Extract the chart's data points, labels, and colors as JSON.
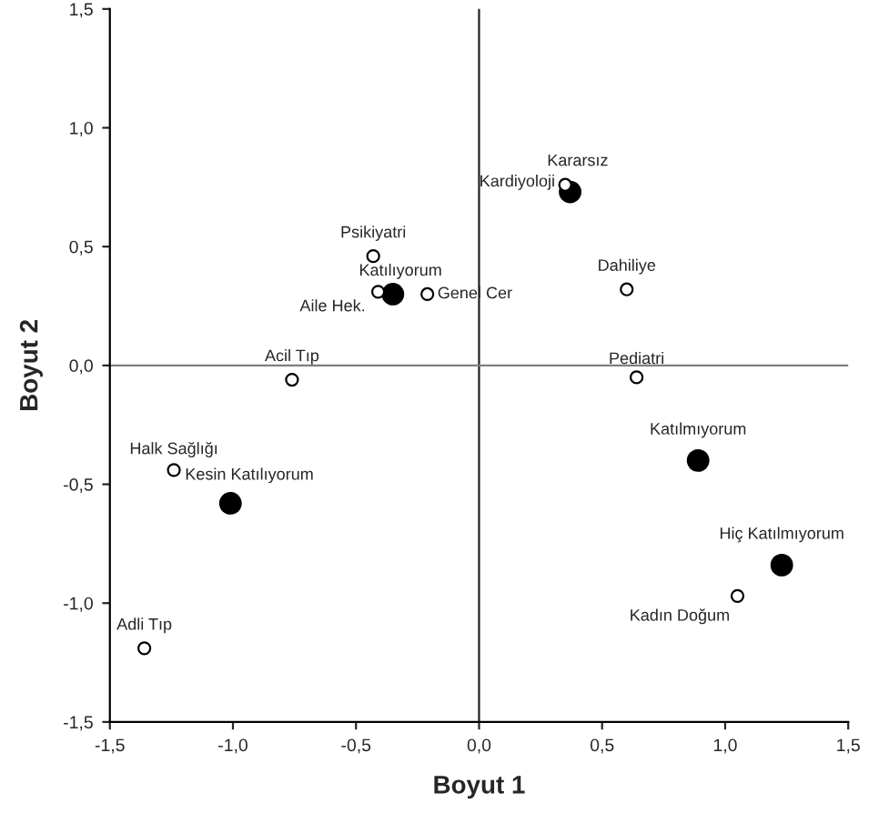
{
  "chart_data": {
    "type": "scatter",
    "xlabel": "Boyut 1",
    "ylabel": "Boyut 2",
    "series": [
      {
        "color": "#000000",
        "marker": "circle",
        "x": [
          -0.43,
          -0.41,
          -0.21,
          -0.76,
          -1.24,
          0.35,
          0.6,
          0.64,
          1.05,
          -1.36
        ],
        "values": [
          0.46,
          0.31,
          0.3,
          -0.06,
          -0.44,
          0.76,
          0.32,
          -0.05,
          -0.97,
          -1.19
        ]
      },
      {
        "color": "#000000",
        "marker": "circle",
        "x": [
          -0.35,
          -1.01,
          0.37,
          0.89,
          1.23
        ],
        "values": [
          0.3,
          -0.58,
          0.73,
          -0.4,
          -0.84
        ]
      }
    ],
    "annotations": [
      {
        "text": "Psikiyatri",
        "x": -0.43,
        "y": 0.46
      },
      {
        "text": "Aile Hek.",
        "x": -0.41,
        "y": 0.31
      },
      {
        "text": "Genel Cer",
        "x": -0.21,
        "y": 0.3
      },
      {
        "text": "Acil Tıp",
        "x": -0.76,
        "y": -0.06
      },
      {
        "text": "Halk Sağlığı",
        "x": -1.24,
        "y": -0.44
      },
      {
        "text": "Kardiyoloji",
        "x": 0.35,
        "y": 0.76
      },
      {
        "text": "Dahiliye",
        "x": 0.6,
        "y": 0.32
      },
      {
        "text": "Pediatri",
        "x": 0.64,
        "y": -0.05
      },
      {
        "text": "Kadın Doğum",
        "x": 1.05,
        "y": -0.97
      },
      {
        "text": "Adli Tıp",
        "x": -1.36,
        "y": -1.19
      },
      {
        "text": "Katılıyorum",
        "x": -0.35,
        "y": 0.3
      },
      {
        "text": "Kesin Katılıyorum",
        "x": -1.01,
        "y": -0.58
      },
      {
        "text": "Kararsız",
        "x": 0.37,
        "y": 0.73
      },
      {
        "text": "Katılmıyorum",
        "x": 0.89,
        "y": -0.4
      },
      {
        "text": "Hiç Katılmıyorum",
        "x": 1.23,
        "y": -0.84
      }
    ],
    "ref_lines": [
      {
        "axis": "x",
        "value": 0,
        "color": "#222222"
      },
      {
        "axis": "y",
        "value": 0,
        "color": "#7f7f7f"
      }
    ],
    "xlim": [
      -1.5,
      1.5
    ],
    "ylim": [
      -1.5,
      1.5
    ],
    "xticks": [
      {
        "value": -1.5,
        "label": "-1,5"
      },
      {
        "value": -1.0,
        "label": "-1,0"
      },
      {
        "value": -0.5,
        "label": "-0,5"
      },
      {
        "value": 0.0,
        "label": "0,0"
      },
      {
        "value": 0.5,
        "label": "0,5"
      },
      {
        "value": 1.0,
        "label": "1,0"
      },
      {
        "value": 1.5,
        "label": "1,5"
      }
    ],
    "yticks": [
      {
        "value": -1.5,
        "label": "-1,5"
      },
      {
        "value": -1.0,
        "label": "-1,0"
      },
      {
        "value": -0.5,
        "label": "-0,5"
      },
      {
        "value": 0.0,
        "label": "0,0"
      },
      {
        "value": 0.5,
        "label": "0,5"
      },
      {
        "value": 1.0,
        "label": "1,0"
      },
      {
        "value": 1.5,
        "label": "1,5"
      }
    ],
    "grid": false,
    "legend": false
  }
}
